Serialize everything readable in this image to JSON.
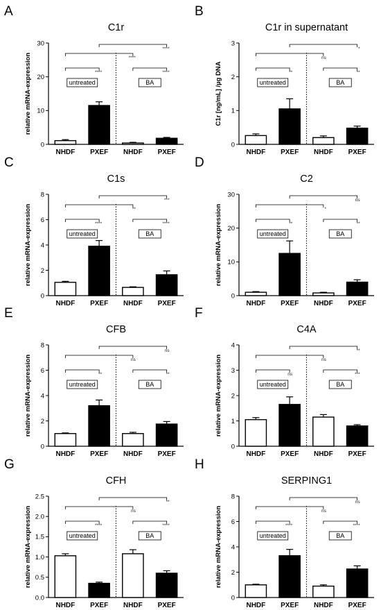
{
  "chart_data": [
    {
      "type": "bar",
      "letter": "A",
      "title": "C1r",
      "ylabel": "relative mRNA-expression",
      "categories": [
        "NHDF",
        "PXEF",
        "NHDF",
        "PXEF"
      ],
      "values": [
        1.1,
        11.5,
        0.4,
        1.8
      ],
      "errors": [
        0.3,
        1.1,
        0.2,
        0.25
      ],
      "fills": [
        "#ffffff",
        "#000000",
        "#ffffff",
        "#000000"
      ],
      "ylim": [
        0,
        30
      ],
      "yticks": [
        0,
        10,
        20,
        30
      ],
      "yticklabels": [
        "0",
        "10",
        "20",
        "30"
      ],
      "group_labels": [
        "untreated",
        "BA"
      ],
      "significance": {
        "top": "****",
        "left": "****",
        "right": "****",
        "mid": "****"
      }
    },
    {
      "type": "bar",
      "letter": "B",
      "title": "C1r in supernatant",
      "ylabel": "C1r [ng/mL] /µg DNA",
      "categories": [
        "NHDF",
        "PXEF",
        "NHDF",
        "PXEF"
      ],
      "values": [
        0.26,
        1.05,
        0.2,
        0.48
      ],
      "errors": [
        0.05,
        0.3,
        0.05,
        0.06
      ],
      "fills": [
        "#ffffff",
        "#000000",
        "#ffffff",
        "#000000"
      ],
      "ylim": [
        0,
        3
      ],
      "yticks": [
        0,
        1,
        2,
        3
      ],
      "yticklabels": [
        "0",
        "1",
        "2",
        "3"
      ],
      "group_labels": [
        "untreated",
        "BA"
      ],
      "significance": {
        "top": "*",
        "left": "**",
        "right": "**",
        "mid": "ns"
      }
    },
    {
      "type": "bar",
      "letter": "C",
      "title": "C1s",
      "ylabel": "relative mRNA-expression",
      "categories": [
        "NHDF",
        "PXEF",
        "NHDF",
        "PXEF"
      ],
      "values": [
        1.05,
        3.9,
        0.65,
        1.65
      ],
      "errors": [
        0.08,
        0.45,
        0.05,
        0.3
      ],
      "fills": [
        "#ffffff",
        "#000000",
        "#ffffff",
        "#000000"
      ],
      "ylim": [
        0,
        8
      ],
      "yticks": [
        0,
        2,
        4,
        6,
        8
      ],
      "yticklabels": [
        "0",
        "2",
        "4",
        "6",
        "8"
      ],
      "group_labels": [
        "untreated",
        "BA"
      ],
      "significance": {
        "top": "***",
        "left": "****",
        "right": "****",
        "mid": "**"
      }
    },
    {
      "type": "bar",
      "letter": "D",
      "title": "C2",
      "ylabel": "relative mRNA-expression",
      "categories": [
        "NHDF",
        "PXEF",
        "NHDF",
        "PXEF"
      ],
      "values": [
        1.0,
        12.5,
        0.8,
        4.0
      ],
      "errors": [
        0.2,
        3.7,
        0.2,
        0.7
      ],
      "fills": [
        "#ffffff",
        "#000000",
        "#ffffff",
        "#000000"
      ],
      "ylim": [
        0,
        30
      ],
      "yticks": [
        0,
        10,
        20,
        30
      ],
      "yticklabels": [
        "0",
        "10",
        "20",
        "30"
      ],
      "group_labels": [
        "untreated",
        "BA"
      ],
      "significance": {
        "top": "ns",
        "left": "**",
        "right": "**",
        "mid": "*"
      }
    },
    {
      "type": "bar",
      "letter": "E",
      "title": "CFB",
      "ylabel": "relative mRNA-expression",
      "categories": [
        "NHDF",
        "PXEF",
        "NHDF",
        "PXEF"
      ],
      "values": [
        1.0,
        3.2,
        1.0,
        1.75
      ],
      "errors": [
        0.05,
        0.45,
        0.1,
        0.2
      ],
      "fills": [
        "#ffffff",
        "#000000",
        "#ffffff",
        "#000000"
      ],
      "ylim": [
        0,
        8
      ],
      "yticks": [
        0,
        2,
        4,
        6,
        8
      ],
      "yticklabels": [
        "0",
        "2",
        "4",
        "6",
        "8"
      ],
      "group_labels": [
        "untreated",
        "BA"
      ],
      "significance": {
        "top": "ns",
        "left": "**",
        "right": "**",
        "mid": "ns"
      }
    },
    {
      "type": "bar",
      "letter": "F",
      "title": "C4A",
      "ylabel": "relative mRNA-expression",
      "categories": [
        "NHDF",
        "PXEF",
        "NHDF",
        "PXEF"
      ],
      "values": [
        1.05,
        1.65,
        1.15,
        0.8
      ],
      "errors": [
        0.08,
        0.3,
        0.1,
        0.05
      ],
      "fills": [
        "#ffffff",
        "#000000",
        "#ffffff",
        "#000000"
      ],
      "ylim": [
        0,
        4
      ],
      "yticks": [
        0,
        1,
        2,
        3,
        4
      ],
      "yticklabels": [
        "0",
        "1",
        "2",
        "3",
        "4"
      ],
      "group_labels": [
        "untreated",
        "BA"
      ],
      "significance": {
        "top": "**",
        "left": "ns",
        "right": "***",
        "mid": "ns"
      }
    },
    {
      "type": "bar",
      "letter": "G",
      "title": "CFH",
      "ylabel": "relative mRNA-expression",
      "categories": [
        "NHDF",
        "PXEF",
        "NHDF",
        "PXEF"
      ],
      "values": [
        1.03,
        0.35,
        1.08,
        0.6
      ],
      "errors": [
        0.05,
        0.03,
        0.1,
        0.06
      ],
      "fills": [
        "#ffffff",
        "#000000",
        "#ffffff",
        "#000000"
      ],
      "ylim": [
        0,
        2.5
      ],
      "yticks": [
        0,
        0.5,
        1.0,
        1.5,
        2.0,
        2.5
      ],
      "yticklabels": [
        "0.0",
        "0.5",
        "1.0",
        "1.5",
        "2.0",
        "2.5"
      ],
      "group_labels": [
        "untreated",
        "BA"
      ],
      "significance": {
        "top": "**",
        "left": "****",
        "right": "****",
        "mid": "ns"
      }
    },
    {
      "type": "bar",
      "letter": "H",
      "title": "SERPING1",
      "ylabel": "relative mRNA-expression",
      "categories": [
        "NHDF",
        "PXEF",
        "NHDF",
        "PXEF"
      ],
      "values": [
        1.0,
        3.3,
        0.9,
        2.25
      ],
      "errors": [
        0.05,
        0.5,
        0.1,
        0.25
      ],
      "fills": [
        "#ffffff",
        "#000000",
        "#ffffff",
        "#000000"
      ],
      "ylim": [
        0,
        8
      ],
      "yticks": [
        0,
        2,
        4,
        6,
        8
      ],
      "yticklabels": [
        "0",
        "2",
        "4",
        "6",
        "8"
      ],
      "group_labels": [
        "untreated",
        "BA"
      ],
      "significance": {
        "top": "ns",
        "left": "****",
        "right": "****",
        "mid": "ns"
      }
    }
  ]
}
